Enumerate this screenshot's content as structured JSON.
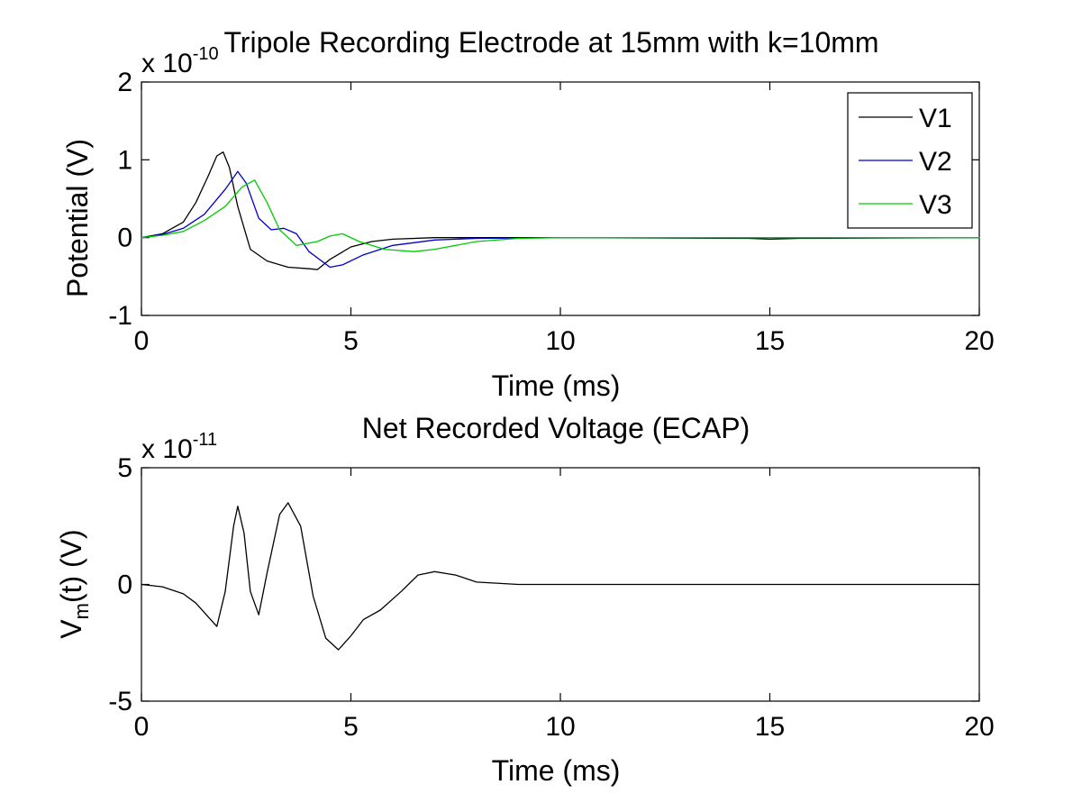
{
  "chart_data": [
    {
      "type": "line",
      "title": "Tripole Recording Electrode at 15mm with k=10mm",
      "xlabel": "Time (ms)",
      "ylabel": "Potential (V)",
      "xlim": [
        0,
        20
      ],
      "ylim": [
        -1,
        2
      ],
      "x_ticks": [
        "0",
        "5",
        "10",
        "15",
        "20"
      ],
      "y_ticks": [
        "-1",
        "0",
        "1",
        "2"
      ],
      "y_exponent_prefix": "x 10",
      "y_exponent": "-10",
      "grid": false,
      "legend_position": "top-right",
      "series": [
        {
          "name": "V1",
          "color": "#000000",
          "x": [
            0,
            0.5,
            1,
            1.3,
            1.6,
            1.8,
            1.95,
            2.1,
            2.3,
            2.6,
            3.0,
            3.5,
            4.0,
            4.2,
            4.5,
            5.0,
            5.5,
            6.0,
            7.0,
            8.0,
            10.0,
            14.5,
            15.0,
            15.7,
            20.0
          ],
          "y": [
            0,
            0.05,
            0.2,
            0.45,
            0.8,
            1.05,
            1.1,
            0.9,
            0.4,
            -0.15,
            -0.3,
            -0.38,
            -0.4,
            -0.41,
            -0.28,
            -0.12,
            -0.05,
            -0.02,
            0,
            0,
            0,
            -0.01,
            -0.02,
            -0.01,
            0
          ]
        },
        {
          "name": "V2",
          "color": "#0000cc",
          "x": [
            0,
            0.5,
            1,
            1.5,
            2.0,
            2.3,
            2.5,
            2.8,
            3.1,
            3.4,
            3.7,
            4.0,
            4.5,
            4.8,
            5.3,
            6.0,
            7.0,
            8.0,
            10.0,
            20.0
          ],
          "y": [
            0,
            0.04,
            0.12,
            0.3,
            0.62,
            0.85,
            0.7,
            0.25,
            0.1,
            0.12,
            0.05,
            -0.18,
            -0.38,
            -0.35,
            -0.22,
            -0.1,
            -0.03,
            -0.01,
            0,
            0
          ]
        },
        {
          "name": "V3",
          "color": "#00cc00",
          "x": [
            0,
            0.5,
            1,
            1.5,
            2.0,
            2.4,
            2.7,
            3.0,
            3.3,
            3.7,
            4.2,
            4.5,
            4.8,
            5.2,
            5.8,
            6.5,
            7.0,
            8.0,
            9.0,
            10.0,
            20.0
          ],
          "y": [
            0,
            0.03,
            0.08,
            0.22,
            0.4,
            0.65,
            0.74,
            0.45,
            0.1,
            -0.1,
            -0.05,
            0.02,
            0.05,
            -0.05,
            -0.15,
            -0.18,
            -0.15,
            -0.05,
            -0.01,
            0,
            0
          ]
        }
      ]
    },
    {
      "type": "line",
      "title": "Net Recorded Voltage (ECAP)",
      "xlabel": "Time (ms)",
      "ylabel_main": "V",
      "ylabel_sub": "m",
      "ylabel_tail": "(t) (V)",
      "xlim": [
        0,
        20
      ],
      "ylim": [
        -5,
        5
      ],
      "x_ticks": [
        "0",
        "5",
        "10",
        "15",
        "20"
      ],
      "y_ticks": [
        "-5",
        "0",
        "5"
      ],
      "y_exponent_prefix": "x 10",
      "y_exponent": "-11",
      "grid": false,
      "series": [
        {
          "color": "#000000",
          "x": [
            0,
            0.5,
            1.0,
            1.3,
            1.6,
            1.8,
            2.0,
            2.2,
            2.3,
            2.45,
            2.6,
            2.8,
            3.0,
            3.3,
            3.5,
            3.8,
            4.1,
            4.4,
            4.7,
            5.0,
            5.3,
            5.7,
            6.2,
            6.6,
            7.0,
            7.5,
            8.0,
            9.0,
            10.0,
            20.0
          ],
          "y": [
            0,
            -0.1,
            -0.4,
            -0.8,
            -1.4,
            -1.8,
            -0.3,
            2.5,
            3.35,
            2.2,
            -0.3,
            -1.3,
            0.5,
            3.0,
            3.5,
            2.5,
            -0.5,
            -2.3,
            -2.8,
            -2.2,
            -1.5,
            -1.1,
            -0.3,
            0.4,
            0.55,
            0.4,
            0.1,
            0,
            0,
            0
          ]
        }
      ]
    }
  ]
}
